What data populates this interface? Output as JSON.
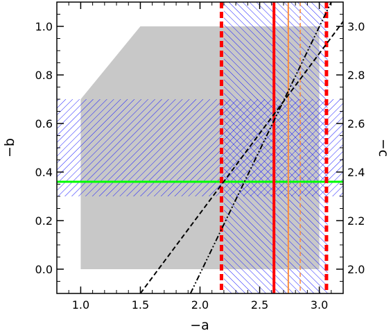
{
  "chart_data": {
    "type": "line",
    "title": "",
    "xlabel": "−a",
    "ylabel": "−b",
    "y2label": "−c",
    "xlim": [
      0.8,
      3.2
    ],
    "ylim": [
      -0.1,
      1.1
    ],
    "y2lim": [
      1.9,
      3.1
    ],
    "x_ticks": [
      "1.0",
      "1.5",
      "2.0",
      "2.5",
      "3.0"
    ],
    "y_ticks": [
      "0.0",
      "0.2",
      "0.4",
      "0.6",
      "0.8",
      "1.0"
    ],
    "y2_ticks": [
      "2.0",
      "2.2",
      "2.4",
      "2.6",
      "2.8",
      "3.0"
    ],
    "grid": false,
    "legend": "none",
    "gray_region": {
      "color": "#c8c8c8",
      "polygon": [
        [
          1.0,
          0.0
        ],
        [
          3.0,
          0.0
        ],
        [
          3.0,
          1.0
        ],
        [
          1.5,
          1.0
        ],
        [
          1.0,
          0.7
        ]
      ]
    },
    "hatched_regions": [
      {
        "color": "#1a1aff",
        "direction": "descending",
        "x": [
          0.8,
          3.2
        ],
        "y": [
          0.3,
          0.7
        ]
      },
      {
        "color": "#1a1aff",
        "direction": "ascending",
        "x": [
          2.2,
          3.07
        ],
        "y": [
          -0.1,
          1.1
        ]
      }
    ],
    "horizontal_lines": [
      {
        "y": 0.36,
        "color": "#00ff00",
        "style": "solid"
      }
    ],
    "vertical_lines": [
      {
        "x": 2.18,
        "color": "#ff0000",
        "style": "thick-dashed"
      },
      {
        "x": 2.62,
        "color": "#ff0000",
        "style": "solid"
      },
      {
        "x": 2.74,
        "color": "#ff8c3c",
        "style": "solid"
      },
      {
        "x": 2.84,
        "color": "#ff8c3c",
        "style": "dashed"
      },
      {
        "x": 3.06,
        "color": "#ff0000",
        "style": "thick-dashed"
      }
    ],
    "series": [
      {
        "style": "dashed",
        "color": "#000000",
        "x": [
          1.5,
          3.2
        ],
        "y": [
          -0.1,
          1.02
        ]
      },
      {
        "style": "dash-dot-dot",
        "color": "#000000",
        "x": [
          1.92,
          3.1
        ],
        "y": [
          -0.1,
          1.1
        ]
      }
    ]
  }
}
